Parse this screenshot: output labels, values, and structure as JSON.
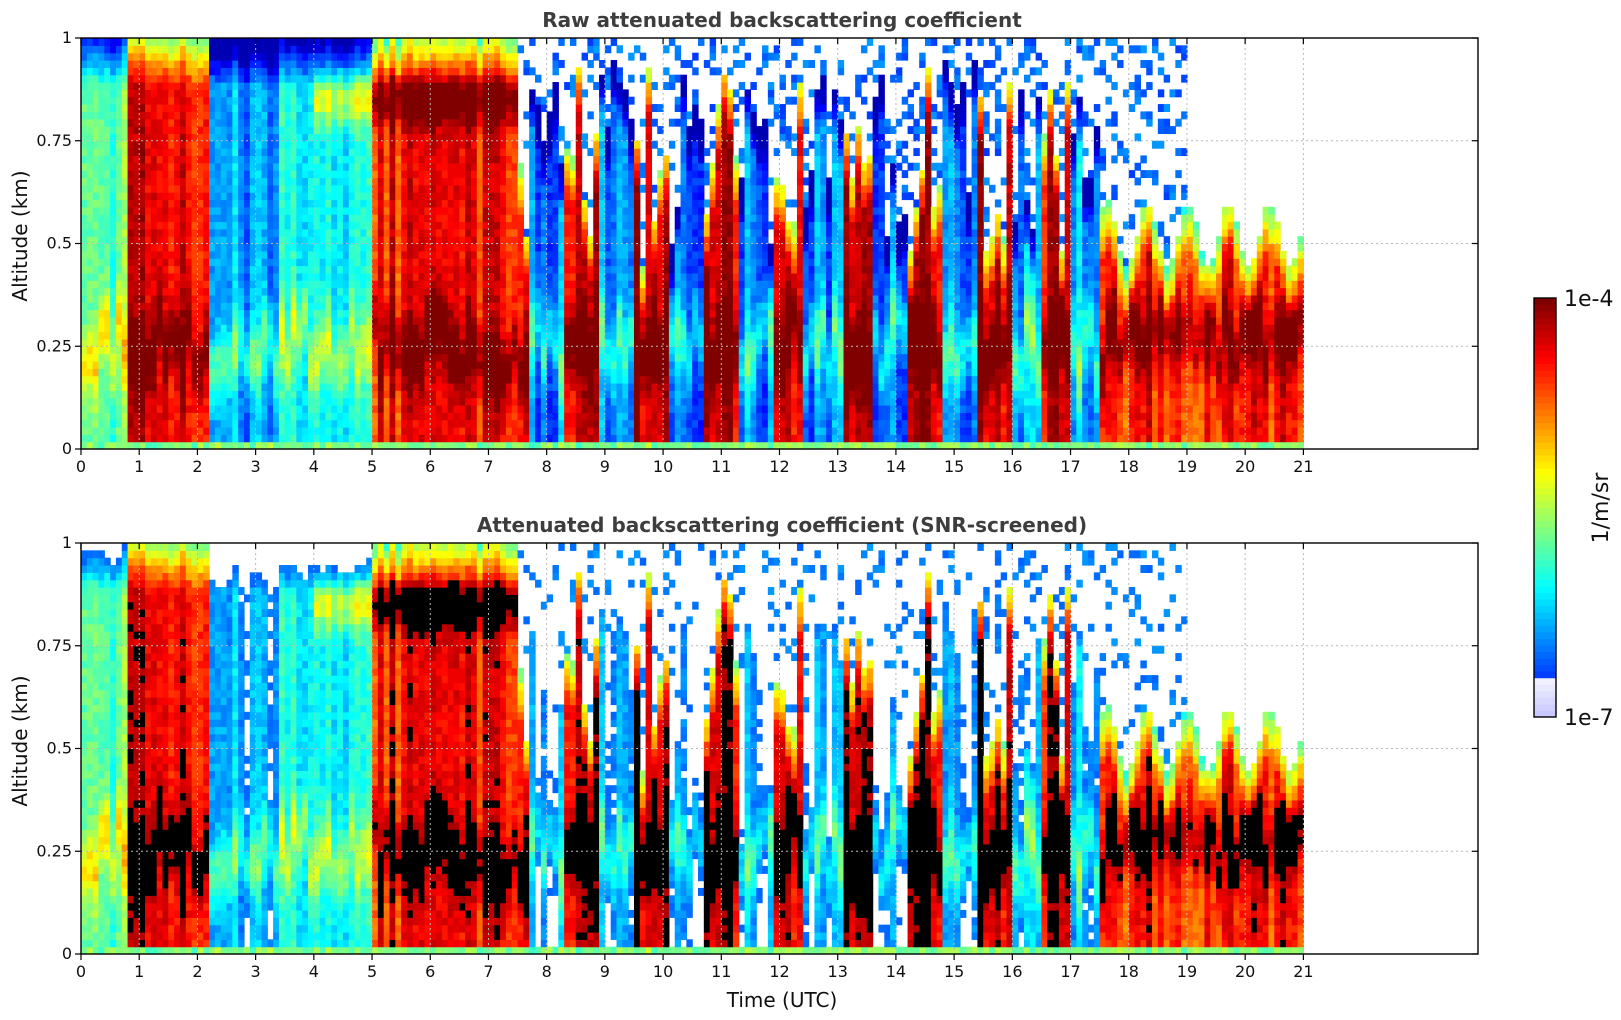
{
  "chart_data": [
    {
      "type": "heatmap",
      "title": "Raw attenuated backscattering coefficient",
      "xlabel": "",
      "ylabel": "Altitude (km)",
      "xlim": [
        0,
        24
      ],
      "ylim": [
        0,
        1
      ],
      "xticks": [
        "0",
        "1",
        "2",
        "3",
        "4",
        "5",
        "6",
        "7",
        "8",
        "9",
        "10",
        "11",
        "12",
        "13",
        "14",
        "15",
        "16",
        "17",
        "18",
        "19",
        "20",
        "21"
      ],
      "yticks": [
        "0",
        "0.25",
        "0.5",
        "0.75",
        "1"
      ],
      "data_extent_x": [
        0,
        21
      ],
      "colorscale": "jet",
      "color_range": [
        "1e-7",
        "1e-4"
      ],
      "snr_screened": false,
      "grid": true
    },
    {
      "type": "heatmap",
      "title": "Attenuated backscattering coefficient (SNR-screened)",
      "xlabel": "Time (UTC)",
      "ylabel": "Altitude (km)",
      "xlim": [
        0,
        24
      ],
      "ylim": [
        0,
        1
      ],
      "xticks": [
        "0",
        "1",
        "2",
        "3",
        "4",
        "5",
        "6",
        "7",
        "8",
        "9",
        "10",
        "11",
        "12",
        "13",
        "14",
        "15",
        "16",
        "17",
        "18",
        "19",
        "20",
        "21"
      ],
      "yticks": [
        "0",
        "0.25",
        "0.5",
        "0.75",
        "1"
      ],
      "data_extent_x": [
        0,
        21
      ],
      "colorscale": "jet",
      "color_range": [
        "1e-7",
        "1e-4"
      ],
      "snr_screened": true,
      "grid": true
    }
  ],
  "colorbar": {
    "top_label": "1e-4",
    "bottom_label": "1e-7",
    "unit_label": "1/m/sr"
  },
  "colors": {
    "jet_low": "#0000ff",
    "jet_high": "#7f0000",
    "saturated": "#000000",
    "grid": "#b9b9b9"
  }
}
